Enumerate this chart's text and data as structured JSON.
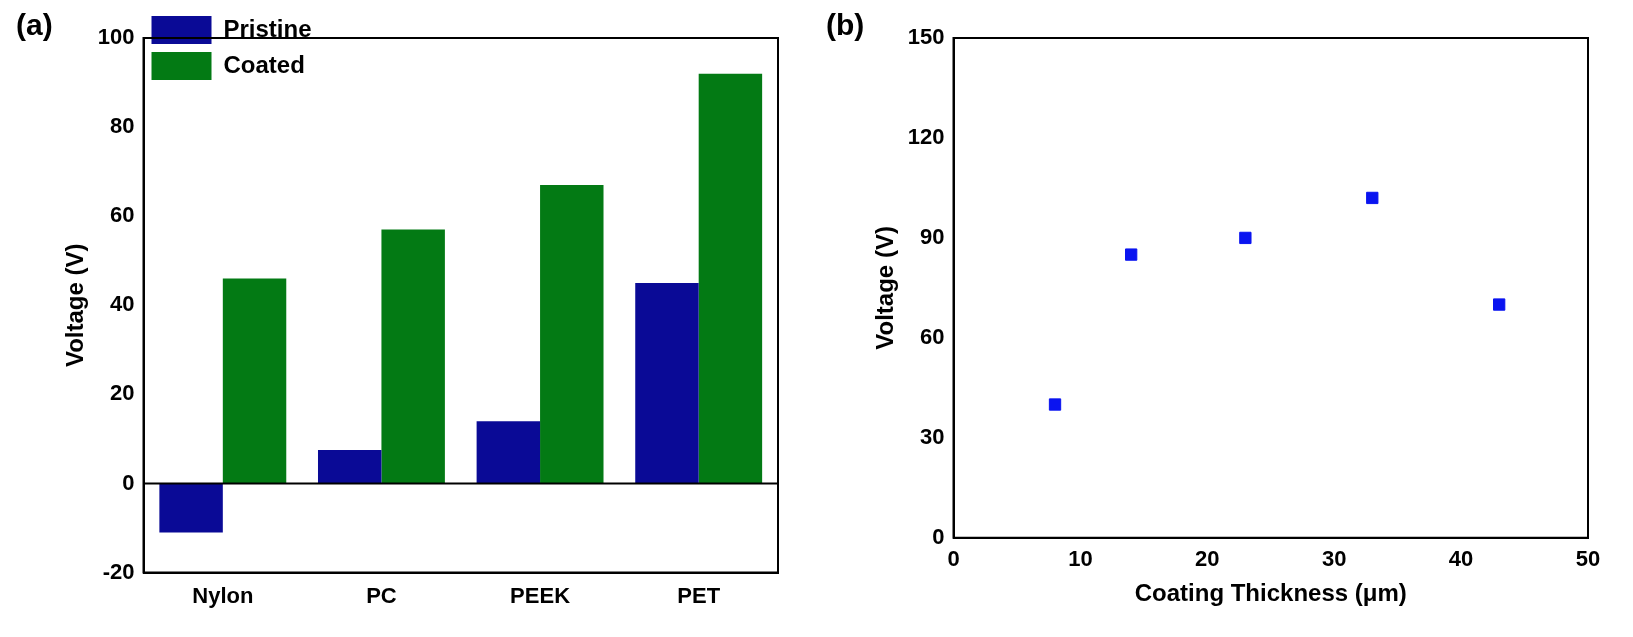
{
  "chart_data": [
    {
      "type": "bar",
      "title": "(a)",
      "ylabel": "Voltage (V)",
      "categories": [
        "Nylon",
        "PC",
        "PEEK",
        "PET"
      ],
      "series": [
        {
          "name": "Pristine",
          "color": "#0a0a96",
          "values": [
            -11,
            7.5,
            14,
            45
          ]
        },
        {
          "name": "Coated",
          "color": "#037a14",
          "values": [
            46,
            57,
            67,
            92
          ]
        }
      ],
      "ylim": [
        -20,
        100
      ],
      "yticks": [
        -20,
        0,
        20,
        40,
        60,
        80,
        100
      ],
      "grid": false,
      "legend": "top left",
      "ref_lines": [
        {
          "axis": "y",
          "value": 0,
          "color": "#000000"
        }
      ]
    },
    {
      "type": "scatter",
      "title": "(b)",
      "xlabel": "Coating Thickness (μm)",
      "ylabel": "Voltage (V)",
      "x": [
        8,
        14,
        23,
        33,
        43
      ],
      "series": [
        {
          "color": "#0a14f0",
          "values": [
            40,
            85,
            90,
            102,
            70
          ]
        }
      ],
      "xlim": [
        0,
        50
      ],
      "xticks": [
        0,
        10,
        20,
        30,
        40,
        50
      ],
      "ylim": [
        0,
        150
      ],
      "yticks": [
        0,
        30,
        60,
        90,
        120,
        150
      ],
      "grid": false,
      "marker": "square",
      "legend": false
    }
  ]
}
